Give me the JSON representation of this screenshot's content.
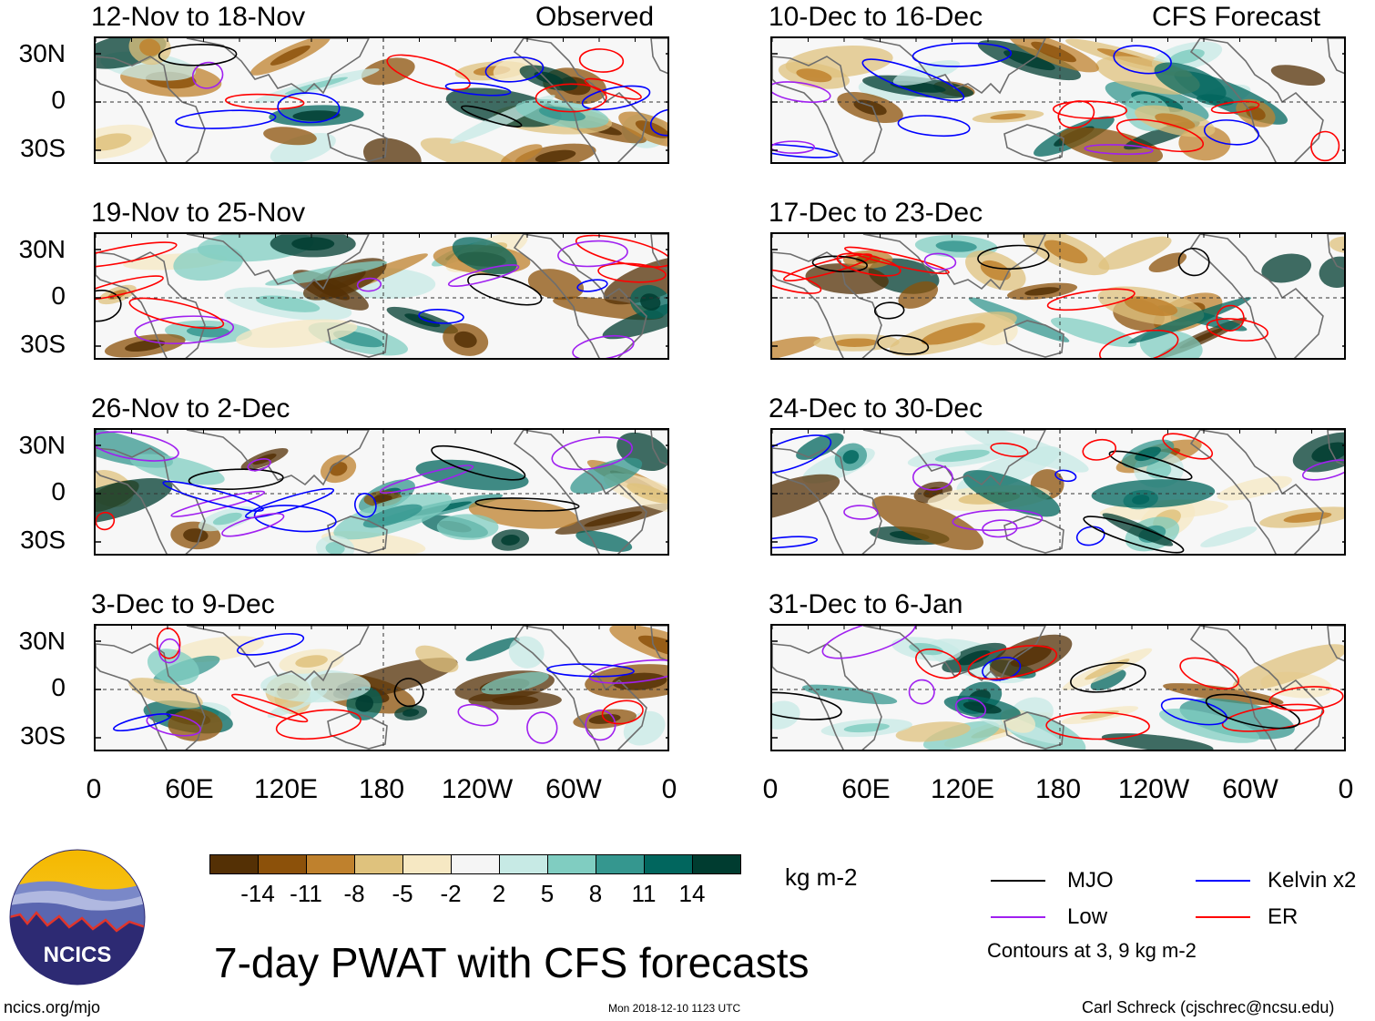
{
  "figure": {
    "main_title": "7-day PWAT with CFS forecasts",
    "website": "ncics.org/mjo",
    "timestamp": "Mon 2018-12-10 1123 UTC",
    "credit": "Carl Schreck (cjschrec@ncsu.edu)",
    "logo_text": "NCICS"
  },
  "columns": {
    "left_header": "Observed",
    "right_header": "CFS Forecast"
  },
  "panels_observed": [
    {
      "title": "12-Nov to 18-Nov"
    },
    {
      "title": "19-Nov to 25-Nov"
    },
    {
      "title": "26-Nov to 2-Dec"
    },
    {
      "title": "3-Dec to 9-Dec"
    }
  ],
  "panels_forecast": [
    {
      "title": "10-Dec to 16-Dec"
    },
    {
      "title": "17-Dec to 23-Dec"
    },
    {
      "title": "24-Dec to 30-Dec"
    },
    {
      "title": "31-Dec to 6-Jan"
    }
  ],
  "axes": {
    "lat_labels": [
      "30N",
      "0",
      "30S"
    ],
    "lon_labels": [
      "0",
      "60E",
      "120E",
      "180",
      "120W",
      "60W",
      "0"
    ]
  },
  "colorbar": {
    "units": "kg m-2",
    "tick_labels": [
      "-14",
      "-11",
      "-8",
      "-5",
      "-2",
      "2",
      "5",
      "8",
      "11",
      "14"
    ],
    "colors": [
      "#543005",
      "#8c510a",
      "#bf812d",
      "#dfc27d",
      "#f6e8c3",
      "#f5f5f5",
      "#c7eae5",
      "#80cdc1",
      "#35978f",
      "#01665e",
      "#003c30"
    ]
  },
  "legend": {
    "items": [
      {
        "label": "MJO",
        "color": "#000000"
      },
      {
        "label": "Kelvin x2",
        "color": "#0000ff"
      },
      {
        "label": "Low",
        "color": "#a020f0"
      },
      {
        "label": "ER",
        "color": "#ff0000"
      }
    ],
    "note": "Contours at 3, 9 kg m-2"
  }
}
